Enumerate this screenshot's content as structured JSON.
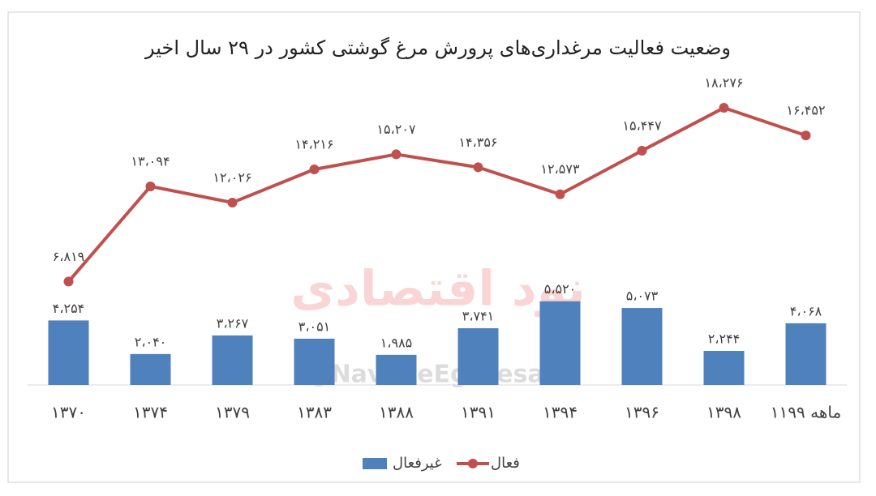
{
  "chart_data": {
    "type": "combo",
    "title": "وضعیت فعالیت مرغداری‌های پرورش مرغ گوشتی کشور در ۲۹ سال اخیر",
    "watermark": [
      "نود اقتصادی",
      "@NavadeEghtesadi"
    ],
    "categories": [
      "۱۳۷۰",
      "۱۳۷۴",
      "۱۳۷۹",
      "۱۳۸۳",
      "۱۳۸۸",
      "۱۳۹۱",
      "۱۳۹۴",
      "۱۳۹۶",
      "۱۳۹۸",
      "۱۱ماهه ۹۹"
    ],
    "series": [
      {
        "name": "غیرفعال",
        "type": "bar",
        "color": "#4f81bd",
        "values": [
          4254,
          2040,
          3267,
          3051,
          1985,
          3741,
          5520,
          5073,
          2244,
          4068
        ],
        "value_labels": [
          "۴،۲۵۴",
          "۲،۰۴۰",
          "۳،۲۶۷",
          "۳،۰۵۱",
          "۱،۹۸۵",
          "۳،۷۴۱",
          "۵،۵۲۰",
          "۵،۰۷۳",
          "۲،۲۴۴",
          "۴،۰۶۸"
        ]
      },
      {
        "name": "فعال",
        "type": "line",
        "color": "#c0504d",
        "values": [
          6819,
          13094,
          12026,
          14216,
          15207,
          14356,
          12573,
          15447,
          18276,
          16452
        ],
        "value_labels": [
          "۶،۸۱۹",
          "۱۳،۰۹۴",
          "۱۲،۰۲۶",
          "۱۴،۲۱۶",
          "۱۵،۲۰۷",
          "۱۴،۳۵۶",
          "۱۲،۵۷۳",
          "۱۵،۴۴۷",
          "۱۸،۲۷۶",
          "۱۶،۴۵۲"
        ]
      }
    ]
  }
}
